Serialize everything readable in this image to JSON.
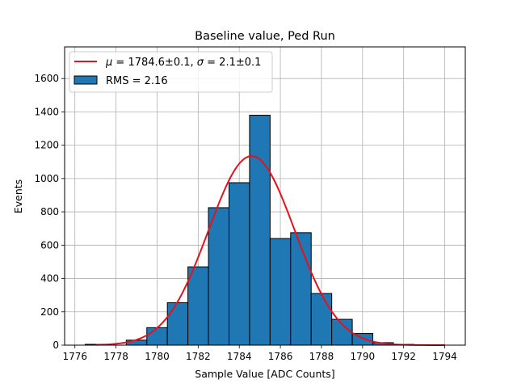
{
  "chart_data": {
    "type": "bar",
    "title": "Baseline value, Ped Run",
    "xlabel": "Sample Value [ADC Counts]",
    "ylabel": "Events",
    "xlim": [
      1775.5,
      1795
    ],
    "ylim": [
      0,
      1790
    ],
    "xticks": [
      1776,
      1778,
      1780,
      1782,
      1784,
      1786,
      1788,
      1790,
      1792,
      1794
    ],
    "yticks": [
      0,
      200,
      400,
      600,
      800,
      1000,
      1200,
      1400,
      1600
    ],
    "grid": true,
    "legend_position": "top-left",
    "bins": [
      {
        "x0": 1776.5,
        "x1": 1777.5,
        "count": 5
      },
      {
        "x0": 1777.5,
        "x1": 1778.5,
        "count": 0
      },
      {
        "x0": 1778.5,
        "x1": 1779.5,
        "count": 30
      },
      {
        "x0": 1779.5,
        "x1": 1780.5,
        "count": 105
      },
      {
        "x0": 1780.5,
        "x1": 1781.5,
        "count": 255
      },
      {
        "x0": 1781.5,
        "x1": 1782.5,
        "count": 470
      },
      {
        "x0": 1782.5,
        "x1": 1783.5,
        "count": 825
      },
      {
        "x0": 1783.5,
        "x1": 1784.5,
        "count": 975
      },
      {
        "x0": 1784.5,
        "x1": 1785.5,
        "count": 1380
      },
      {
        "x0": 1785.5,
        "x1": 1786.5,
        "count": 640
      },
      {
        "x0": 1786.5,
        "x1": 1787.5,
        "count": 675
      },
      {
        "x0": 1787.5,
        "x1": 1788.5,
        "count": 310
      },
      {
        "x0": 1788.5,
        "x1": 1789.5,
        "count": 155
      },
      {
        "x0": 1789.5,
        "x1": 1790.5,
        "count": 70
      },
      {
        "x0": 1790.5,
        "x1": 1791.5,
        "count": 15
      },
      {
        "x0": 1791.5,
        "x1": 1792.5,
        "count": 5
      }
    ],
    "fit": {
      "mu": 1784.6,
      "sigma": 2.1,
      "amplitude": 1135,
      "x_range": [
        1777,
        1794
      ]
    },
    "series": [
      {
        "name": "$\\mu = 1784.6\\pm0.1$, $\\sigma = 2.1\\pm0.1$",
        "type": "line",
        "color": "#e8111b"
      },
      {
        "name": "RMS = 2.16",
        "type": "bar",
        "color": "#1f77b4"
      }
    ],
    "legend": {
      "fit_prefix_mu": "μ",
      "fit_value_mu": " = 1784.6±0.1, ",
      "fit_prefix_sigma": "σ",
      "fit_value_sigma": " = 2.1±0.1",
      "hist_label": "RMS = 2.16"
    },
    "colors": {
      "bar_fill": "#1f77b4",
      "bar_edge": "#000000",
      "fit_line": "#e8111b",
      "grid": "#b0b0b0"
    }
  }
}
